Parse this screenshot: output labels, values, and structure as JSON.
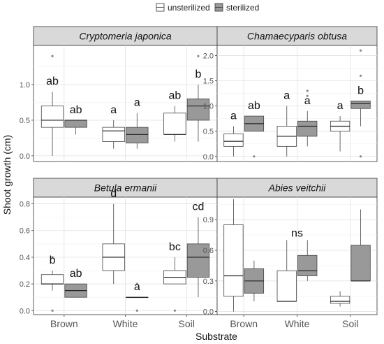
{
  "chart_data": {
    "type": "boxplot",
    "legend": {
      "placement": "top",
      "entries": [
        {
          "label": "unsterilized",
          "fill": "#ffffff"
        },
        {
          "label": "sterilized",
          "fill": "#999999"
        }
      ]
    },
    "xlabel": "Substrate",
    "ylabel": "Shoot growth (cm)",
    "categories": [
      "Brown",
      "White",
      "Soil"
    ],
    "grid": true,
    "panels": [
      {
        "title": "Cryptomeria japonica",
        "ylim": [
          -0.08,
          1.55
        ],
        "yticks": [
          0.0,
          0.5,
          1.0
        ],
        "ytick_labels": [
          "0.0",
          "0.5",
          "1.0"
        ],
        "groups": [
          {
            "category": "Brown",
            "unsterilized": {
              "min": 0.0,
              "q1": 0.4,
              "median": 0.5,
              "q3": 0.7,
              "max": 0.9,
              "outliers": [
                1.4
              ]
            },
            "sterilized": {
              "min": 0.3,
              "q1": 0.4,
              "median": 0.5,
              "q3": 0.5,
              "max": 0.5,
              "outliers": []
            },
            "letters": [
              "ab",
              "ab"
            ]
          },
          {
            "category": "White",
            "unsterilized": {
              "min": 0.1,
              "q1": 0.2,
              "median": 0.35,
              "q3": 0.4,
              "max": 0.5,
              "outliers": []
            },
            "sterilized": {
              "min": 0.1,
              "q1": 0.18,
              "median": 0.3,
              "q3": 0.4,
              "max": 0.6,
              "outliers": []
            },
            "letters": [
              "a",
              "a"
            ]
          },
          {
            "category": "Soil",
            "unsterilized": {
              "min": 0.2,
              "q1": 0.3,
              "median": 0.3,
              "q3": 0.6,
              "max": 0.7,
              "outliers": []
            },
            "sterilized": {
              "min": 0.2,
              "q1": 0.5,
              "median": 0.7,
              "q3": 0.8,
              "max": 1.0,
              "outliers": [
                1.4
              ]
            },
            "letters": [
              "ab",
              "b"
            ]
          }
        ]
      },
      {
        "title": "Chamaecyparis obtusa",
        "ylim": [
          -0.1,
          2.2
        ],
        "yticks": [
          0.0,
          0.5,
          1.0,
          1.5,
          2.0
        ],
        "ytick_labels": [
          "0.0",
          "0.5",
          "1.0",
          "1.5",
          "2.0"
        ],
        "groups": [
          {
            "category": "Brown",
            "unsterilized": {
              "min": 0.0,
              "q1": 0.2,
              "median": 0.3,
              "q3": 0.45,
              "max": 0.6,
              "outliers": []
            },
            "sterilized": {
              "min": 0.5,
              "q1": 0.5,
              "median": 0.65,
              "q3": 0.8,
              "max": 0.8,
              "outliers": [
                0.0
              ]
            },
            "letters": [
              "a",
              "ab"
            ]
          },
          {
            "category": "White",
            "unsterilized": {
              "min": 0.0,
              "q1": 0.2,
              "median": 0.4,
              "q3": 0.6,
              "max": 1.0,
              "outliers": []
            },
            "sterilized": {
              "min": 0.2,
              "q1": 0.4,
              "median": 0.6,
              "q3": 0.7,
              "max": 0.9,
              "outliers": [
                1.2,
                1.3
              ]
            },
            "letters": [
              "a",
              "a"
            ]
          },
          {
            "category": "Soil",
            "unsterilized": {
              "min": 0.1,
              "q1": 0.5,
              "median": 0.6,
              "q3": 0.7,
              "max": 0.8,
              "outliers": []
            },
            "sterilized": {
              "min": 0.6,
              "q1": 0.95,
              "median": 1.05,
              "q3": 1.1,
              "max": 1.1,
              "outliers": [
                0.0,
                1.6,
                2.1
              ]
            },
            "letters": [
              "a",
              "b"
            ]
          }
        ]
      },
      {
        "title": "Betula ermanii",
        "ylim": [
          -0.03,
          0.85
        ],
        "yticks": [
          0.0,
          0.2,
          0.4,
          0.6,
          0.8
        ],
        "ytick_labels": [
          "0.0",
          "0.2",
          "0.4",
          "0.6",
          "0.8"
        ],
        "groups": [
          {
            "category": "Brown",
            "unsterilized": {
              "min": 0.15,
              "q1": 0.2,
              "median": 0.2,
              "q3": 0.27,
              "max": 0.3,
              "outliers": [
                0.0,
                0.4
              ]
            },
            "sterilized": {
              "min": 0.1,
              "q1": 0.1,
              "median": 0.15,
              "q3": 0.2,
              "max": 0.2,
              "outliers": []
            },
            "letters": [
              "b",
              "ab"
            ]
          },
          {
            "category": "White",
            "unsterilized": {
              "min": 0.2,
              "q1": 0.3,
              "median": 0.4,
              "q3": 0.5,
              "max": 0.8,
              "outliers": []
            },
            "sterilized": {
              "min": 0.1,
              "q1": 0.1,
              "median": 0.1,
              "q3": 0.1,
              "max": 0.1,
              "outliers": [
                0.0,
                0.2
              ]
            },
            "letters": [
              "d",
              "a"
            ]
          },
          {
            "category": "Soil",
            "unsterilized": {
              "min": 0.2,
              "q1": 0.2,
              "median": 0.25,
              "q3": 0.3,
              "max": 0.4,
              "outliers": [
                0.0
              ]
            },
            "sterilized": {
              "min": 0.1,
              "q1": 0.25,
              "median": 0.4,
              "q3": 0.5,
              "max": 0.7,
              "outliers": []
            },
            "letters": [
              "bc",
              "cd"
            ]
          }
        ]
      },
      {
        "title": "Abies veitchii",
        "ylim": [
          -0.03,
          1.12
        ],
        "yticks": [
          0.0,
          0.3,
          0.6,
          0.9
        ],
        "ytick_labels": [
          "0.0",
          "0.3",
          "0.6",
          "0.9"
        ],
        "annotation": "ns",
        "groups": [
          {
            "category": "Brown",
            "unsterilized": {
              "min": 0.0,
              "q1": 0.15,
              "median": 0.35,
              "q3": 0.85,
              "max": 1.1,
              "outliers": []
            },
            "sterilized": {
              "min": 0.1,
              "q1": 0.18,
              "median": 0.3,
              "q3": 0.42,
              "max": 0.5,
              "outliers": []
            },
            "letters": []
          },
          {
            "category": "White",
            "unsterilized": {
              "min": 0.1,
              "q1": 0.1,
              "median": 0.1,
              "q3": 0.4,
              "max": 0.7,
              "outliers": []
            },
            "sterilized": {
              "min": 0.3,
              "q1": 0.35,
              "median": 0.4,
              "q3": 0.55,
              "max": 0.7,
              "outliers": []
            },
            "letters": []
          },
          {
            "category": "Soil",
            "unsterilized": {
              "min": 0.05,
              "q1": 0.08,
              "median": 0.1,
              "q3": 0.15,
              "max": 0.2,
              "outliers": []
            },
            "sterilized": {
              "min": 0.3,
              "q1": 0.3,
              "median": 0.3,
              "q3": 0.65,
              "max": 1.0,
              "outliers": []
            },
            "letters": []
          }
        ]
      }
    ]
  }
}
